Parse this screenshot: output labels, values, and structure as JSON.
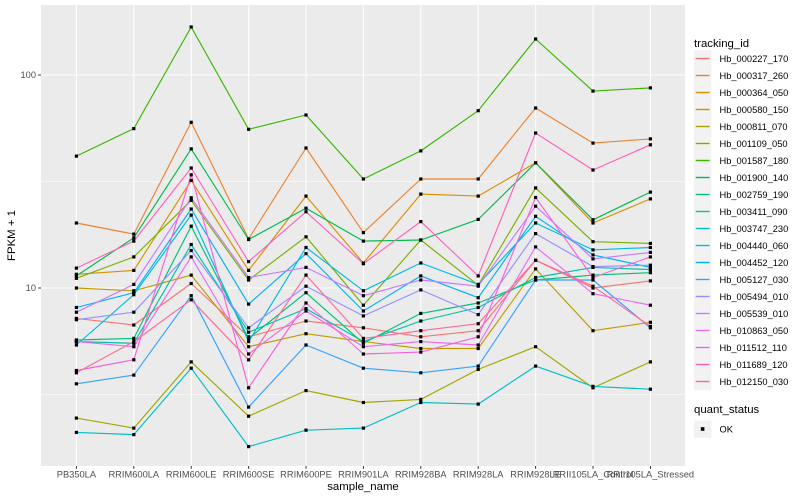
{
  "chart_data": {
    "type": "line",
    "title": "",
    "xlabel": "sample_name",
    "ylabel": "FPKM + 1",
    "yscale": "log10",
    "y_major_ticks": [
      100,
      10
    ],
    "y_minor_gridlines": [
      31.623,
      3.1623
    ],
    "ylim_approx": [
      1.5,
      205
    ],
    "grid": "white major+minor on gray panel",
    "panel_bg": "#EBEBEB",
    "grid_color": "#FFFFFF",
    "tick_color": "#333333",
    "tick_label_color": "#4D4D4D",
    "marker_color": "#000000",
    "x_categories": [
      "PB350LA",
      "RRIM600LA",
      "RRIM600LE",
      "RRIM600SE",
      "RRIM600PE",
      "RRIM901LA",
      "RRIM928BA",
      "RRIM928LA",
      "RRIM928LE",
      "RRII105LA_Control",
      "RRII105LA_Stressed"
    ],
    "legend": {
      "title": "tracking_id",
      "position": "right-top"
    },
    "legend2": {
      "title": "quant_status",
      "items": [
        {
          "label": "OK",
          "marker": "black-square"
        }
      ]
    },
    "series": [
      {
        "name": "Hb_000227_170",
        "color": "#F8766D",
        "values": [
          7.2,
          6.7,
          10.5,
          5.9,
          7.0,
          6.5,
          5.9,
          6.3,
          13.5,
          10.0,
          10.8
        ]
      },
      {
        "name": "Hb_000317_260",
        "color": "#EA8331",
        "values": [
          20.2,
          17.9,
          60.0,
          17.0,
          45.4,
          18.2,
          32.5,
          32.5,
          70.0,
          47.9,
          50.1
        ]
      },
      {
        "name": "Hb_000364_050",
        "color": "#D89000",
        "values": [
          11.6,
          12.1,
          32.0,
          12.1,
          27.0,
          13.1,
          27.6,
          27.0,
          38.7,
          20.2,
          26.2
        ]
      },
      {
        "name": "Hb_000580_150",
        "color": "#C09B00",
        "values": [
          10.0,
          9.7,
          11.5,
          5.3,
          6.1,
          5.6,
          5.2,
          5.2,
          12.3,
          6.3,
          6.9
        ]
      },
      {
        "name": "Hb_000811_070",
        "color": "#A3A500",
        "values": [
          2.45,
          2.2,
          4.5,
          2.5,
          3.3,
          2.9,
          3.0,
          4.15,
          5.3,
          3.4,
          4.5
        ]
      },
      {
        "name": "Hb_001109_050",
        "color": "#7CAE00",
        "values": [
          11.1,
          14.0,
          25.8,
          10.9,
          17.4,
          8.3,
          16.8,
          10.3,
          29.5,
          16.5,
          16.2
        ]
      },
      {
        "name": "Hb_001587_180",
        "color": "#39B600",
        "values": [
          41.6,
          56.0,
          168.0,
          55.6,
          64.9,
          32.5,
          44.0,
          68.0,
          147.6,
          84.0,
          87.0
        ]
      },
      {
        "name": "Hb_001900_140",
        "color": "#00BB4E",
        "values": [
          11.4,
          17.2,
          45.0,
          16.9,
          23.7,
          16.6,
          16.8,
          21.0,
          38.7,
          20.9,
          28.2
        ]
      },
      {
        "name": "Hb_002759_190",
        "color": "#00BF7D",
        "values": [
          5.7,
          5.8,
          19.5,
          5.8,
          9.5,
          5.5,
          7.6,
          8.5,
          10.9,
          11.5,
          11.8
        ]
      },
      {
        "name": "Hb_003411_090",
        "color": "#00C1A3",
        "values": [
          5.6,
          5.5,
          16.0,
          6.2,
          8.0,
          5.6,
          7.0,
          8.1,
          11.2,
          12.5,
          12.2
        ]
      },
      {
        "name": "Hb_003747_230",
        "color": "#00BFC4",
        "values": [
          2.1,
          2.05,
          4.2,
          1.8,
          2.15,
          2.2,
          2.9,
          2.85,
          4.3,
          3.45,
          3.35
        ]
      },
      {
        "name": "Hb_004440_060",
        "color": "#00BAE0",
        "values": [
          5.4,
          9.3,
          22.0,
          5.6,
          15.5,
          9.7,
          13.1,
          10.4,
          20.2,
          15.1,
          15.5
        ]
      },
      {
        "name": "Hb_004452_120",
        "color": "#00B0F6",
        "values": [
          8.1,
          9.5,
          23.5,
          8.4,
          14.5,
          7.8,
          11.4,
          9.0,
          21.7,
          14.3,
          12.5
        ]
      },
      {
        "name": "Hb_005127_030",
        "color": "#35A2FF",
        "values": [
          3.55,
          3.9,
          9.2,
          2.76,
          5.4,
          4.2,
          4.0,
          4.3,
          10.9,
          10.9,
          6.5
        ]
      },
      {
        "name": "Hb_005494_010",
        "color": "#9590FF",
        "values": [
          7.1,
          7.7,
          15.0,
          6.5,
          10.2,
          7.4,
          9.8,
          7.5,
          18.0,
          12.6,
          12.8
        ]
      },
      {
        "name": "Hb_005539_010",
        "color": "#C77CFF",
        "values": [
          7.7,
          10.4,
          26.5,
          11.2,
          12.5,
          9.2,
          10.9,
          10.2,
          24.2,
          13.7,
          14.7
        ]
      },
      {
        "name": "Hb_010863_050",
        "color": "#E76BF3",
        "values": [
          5.6,
          5.3,
          14.0,
          4.9,
          7.8,
          5.3,
          5.6,
          5.4,
          15.6,
          9.4,
          8.3
        ]
      },
      {
        "name": "Hb_011512_110",
        "color": "#FA62DB",
        "values": [
          4.1,
          4.6,
          34.0,
          3.4,
          8.5,
          4.9,
          5.0,
          5.9,
          26.6,
          11.2,
          14.0
        ]
      },
      {
        "name": "Hb_011689_120",
        "color": "#FF62BC",
        "values": [
          12.4,
          16.6,
          36.6,
          13.3,
          22.8,
          13.0,
          20.5,
          11.4,
          53.4,
          35.8,
          47.0
        ]
      },
      {
        "name": "Hb_012150_030",
        "color": "#FF6A98",
        "values": [
          4.0,
          5.6,
          8.8,
          4.6,
          11.5,
          5.8,
          6.3,
          6.8,
          13.5,
          10.2,
          6.6
        ]
      }
    ]
  }
}
